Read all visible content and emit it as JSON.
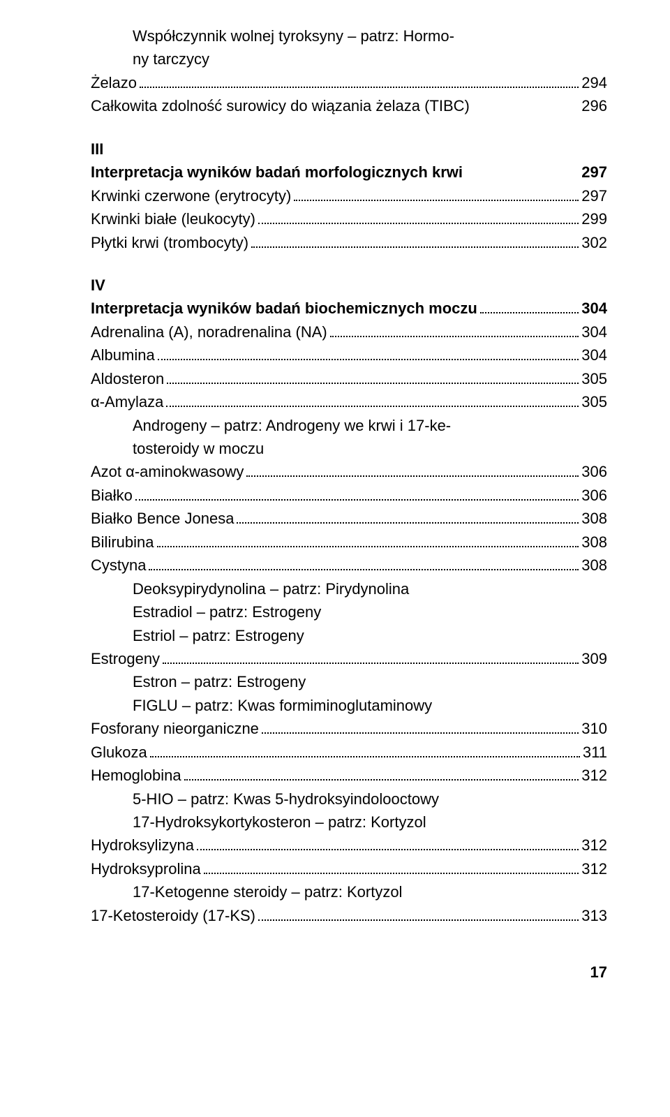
{
  "entries": [
    {
      "type": "ref-indent",
      "label": "Współczynnik wolnej tyroksyny – patrz: Hormo-"
    },
    {
      "type": "ref-indent",
      "label": "ny tarczycy"
    },
    {
      "type": "dotted",
      "label": "Żelazo",
      "page": "294"
    },
    {
      "type": "dotted-nogap",
      "label": "Całkowita zdolność surowicy do wiązania żelaza (TIBC)",
      "page": "296"
    }
  ],
  "section3": {
    "num": "III",
    "title_label": "Interpretacja wyników badań morfologicznych krwi",
    "title_page": "297",
    "items": [
      {
        "label": "Krwinki czerwone (erytrocyty)",
        "page": "297"
      },
      {
        "label": "Krwinki białe (leukocyty)",
        "page": "299"
      },
      {
        "label": "Płytki krwi (trombocyty)",
        "page": "302"
      }
    ]
  },
  "section4": {
    "num": "IV",
    "title_label": "Interpretacja wyników badań biochemicznych moczu",
    "title_page": "304",
    "items": [
      {
        "type": "dotted",
        "label": "Adrenalina (A), noradrenalina (NA)",
        "page": "304"
      },
      {
        "type": "dotted",
        "label": "Albumina",
        "page": "304"
      },
      {
        "type": "dotted",
        "label": "Aldosteron",
        "page": "305"
      },
      {
        "type": "dotted",
        "label": "α-Amylaza",
        "page": "305"
      },
      {
        "type": "ref-indent",
        "label": "Androgeny – patrz: Androgeny we krwi i 17-ke-"
      },
      {
        "type": "ref-indent",
        "label": "tosteroidy w moczu"
      },
      {
        "type": "dotted",
        "label": "Azot α-aminokwasowy",
        "page": "306"
      },
      {
        "type": "dotted",
        "label": "Białko",
        "page": "306"
      },
      {
        "type": "dotted",
        "label": "Białko Bence Jonesa",
        "page": "308"
      },
      {
        "type": "dotted",
        "label": "Bilirubina",
        "page": "308"
      },
      {
        "type": "dotted",
        "label": "Cystyna",
        "page": "308"
      },
      {
        "type": "ref-indent",
        "label": "Deoksypirydynolina – patrz: Pirydynolina"
      },
      {
        "type": "ref-indent",
        "label": "Estradiol – patrz: Estrogeny"
      },
      {
        "type": "ref-indent",
        "label": "Estriol – patrz: Estrogeny"
      },
      {
        "type": "dotted",
        "label": "Estrogeny",
        "page": "309"
      },
      {
        "type": "ref-indent",
        "label": "Estron – patrz: Estrogeny"
      },
      {
        "type": "ref-indent",
        "label": "FIGLU – patrz: Kwas formiminoglutaminowy"
      },
      {
        "type": "dotted",
        "label": "Fosforany nieorganiczne",
        "page": "310"
      },
      {
        "type": "dotted",
        "label": "Glukoza",
        "page": "311"
      },
      {
        "type": "dotted",
        "label": "Hemoglobina",
        "page": "312"
      },
      {
        "type": "ref-indent",
        "label": "5-HIO – patrz: Kwas 5-hydroksyindolooctowy"
      },
      {
        "type": "ref-indent",
        "label": "17-Hydroksykortykosteron – patrz: Kortyzol"
      },
      {
        "type": "dotted",
        "label": "Hydroksylizyna",
        "page": "312"
      },
      {
        "type": "dotted",
        "label": "Hydroksyprolina",
        "page": "312"
      },
      {
        "type": "ref-indent",
        "label": "17-Ketogenne steroidy – patrz: Kortyzol"
      },
      {
        "type": "dotted",
        "label": "17-Ketosteroidy (17-KS)",
        "page": "313"
      }
    ]
  },
  "footer": "17"
}
